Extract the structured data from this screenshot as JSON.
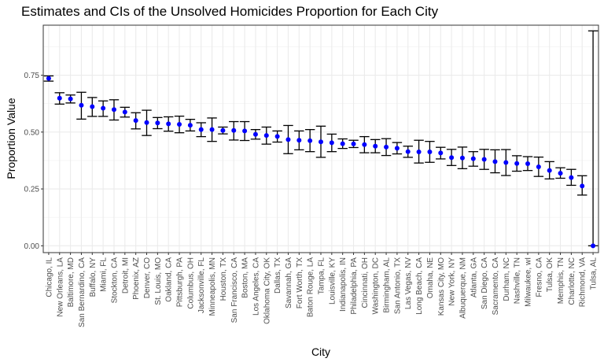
{
  "chart_data": {
    "type": "scatter",
    "title": "Estimates and CIs of the Unsolved Homicides Proportion for Each City",
    "xlabel": "City",
    "ylabel": "Proportion Value",
    "ylim": [
      -0.03,
      0.97
    ],
    "y_ticks": [
      0.0,
      0.25,
      0.5,
      0.75
    ],
    "y_tick_labels": [
      "0.00",
      "0.25",
      "0.50",
      "0.75"
    ],
    "grid": true,
    "point_color": "#0000ff",
    "errorbar_color": "#000000",
    "categories": [
      "Chicago, IL",
      "New Orleans, LA",
      "Baltimore, MD",
      "San Bernardino, CA",
      "Buffalo, NY",
      "Miami, FL",
      "Stockton, CA",
      "Detroit, MI",
      "Phoenix, AZ",
      "Denver, CO",
      "St. Louis, MO",
      "Oakland, CA",
      "Pittsburgh, PA",
      "Columbus, OH",
      "Jacksonville, FL",
      "Minneapolis, MN",
      "Houston, TX",
      "San Francisco, CA",
      "Boston, MA",
      "Los Angeles, CA",
      "Oklahoma City, OK",
      "Dallas, TX",
      "Savannah, GA",
      "Fort Worth, TX",
      "Baton Rouge, LA",
      "Tampa, FL",
      "Louisville, KY",
      "Indianapolis, IN",
      "Philadelphia, PA",
      "Cincinnati, OH",
      "Washington, DC",
      "Birmingham, AL",
      "San Antonio, TX",
      "Las Vegas, NV",
      "Long Beach, CA",
      "Omaha, NE",
      "Kansas City, MO",
      "New York, NY",
      "Albuquerque, NM",
      "Atlanta, GA",
      "San Diego, CA",
      "Sacramento, CA",
      "Durham, NC",
      "Nashville, TN",
      "Milwaukee, wI",
      "Fresno, CA",
      "Tulsa, OK",
      "Memphis, TN",
      "Charlotte, NC",
      "Richmond, VA",
      "Tulsa, AL"
    ],
    "estimate": [
      0.736,
      0.649,
      0.646,
      0.618,
      0.612,
      0.605,
      0.599,
      0.588,
      0.551,
      0.542,
      0.54,
      0.536,
      0.534,
      0.53,
      0.511,
      0.511,
      0.507,
      0.507,
      0.505,
      0.49,
      0.485,
      0.481,
      0.467,
      0.464,
      0.462,
      0.457,
      0.453,
      0.449,
      0.448,
      0.445,
      0.438,
      0.434,
      0.429,
      0.414,
      0.413,
      0.413,
      0.408,
      0.388,
      0.386,
      0.383,
      0.38,
      0.37,
      0.366,
      0.362,
      0.361,
      0.347,
      0.331,
      0.319,
      0.3,
      0.263,
      0.0
    ],
    "ci_low": [
      0.724,
      0.623,
      0.628,
      0.557,
      0.569,
      0.569,
      0.553,
      0.566,
      0.514,
      0.485,
      0.515,
      0.504,
      0.497,
      0.505,
      0.48,
      0.459,
      0.492,
      0.465,
      0.463,
      0.469,
      0.447,
      0.456,
      0.405,
      0.422,
      0.414,
      0.389,
      0.414,
      0.428,
      0.432,
      0.409,
      0.409,
      0.397,
      0.404,
      0.389,
      0.364,
      0.367,
      0.382,
      0.353,
      0.339,
      0.35,
      0.336,
      0.321,
      0.309,
      0.328,
      0.331,
      0.305,
      0.294,
      0.297,
      0.266,
      0.223,
      0.0
    ],
    "ci_high": [
      0.747,
      0.673,
      0.663,
      0.675,
      0.652,
      0.637,
      0.642,
      0.609,
      0.585,
      0.596,
      0.564,
      0.567,
      0.57,
      0.556,
      0.541,
      0.562,
      0.522,
      0.546,
      0.546,
      0.511,
      0.522,
      0.505,
      0.529,
      0.505,
      0.511,
      0.526,
      0.491,
      0.47,
      0.464,
      0.48,
      0.467,
      0.471,
      0.454,
      0.438,
      0.464,
      0.459,
      0.433,
      0.424,
      0.434,
      0.414,
      0.424,
      0.422,
      0.423,
      0.396,
      0.392,
      0.39,
      0.37,
      0.343,
      0.336,
      0.308,
      0.945
    ]
  }
}
